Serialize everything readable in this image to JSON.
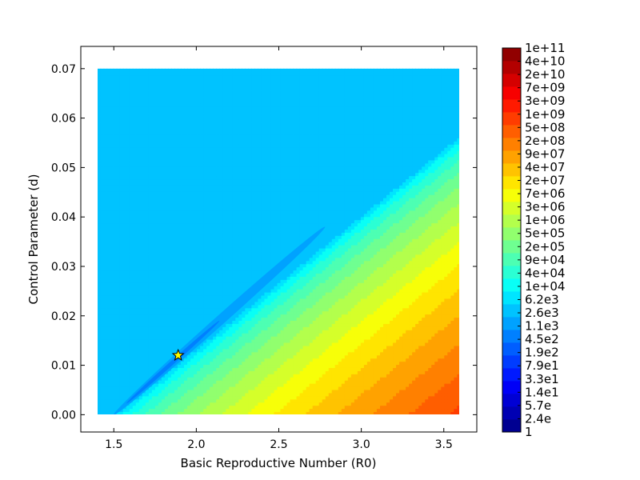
{
  "chart_data": {
    "type": "contour",
    "title": "",
    "xlabel": "Basic Reproductive Number (R0)",
    "ylabel": "Control Parameter (d)",
    "xlim": [
      1.3,
      3.7
    ],
    "ylim": [
      -0.0035,
      0.0745
    ],
    "data_extent": {
      "x": [
        1.4,
        3.6
      ],
      "y": [
        0.0,
        0.07
      ]
    },
    "xticks": [
      "1.5",
      "2.0",
      "2.5",
      "3.0",
      "3.5"
    ],
    "xtick_values": [
      1.5,
      2.0,
      2.5,
      3.0,
      3.5
    ],
    "yticks": [
      "0.00",
      "0.01",
      "0.02",
      "0.03",
      "0.04",
      "0.05",
      "0.06",
      "0.07"
    ],
    "ytick_values": [
      0.0,
      0.01,
      0.02,
      0.03,
      0.04,
      0.05,
      0.06,
      0.07
    ],
    "colormap": "jet",
    "colorbar_levels": [
      "1",
      "2.4e",
      "5.7e",
      "1.4e1",
      "3.3e1",
      "7.9e1",
      "1.9e2",
      "4.5e2",
      "1.1e3",
      "2.6e3",
      "6.2e3",
      "1e+04",
      "4e+04",
      "9e+04",
      "2e+05",
      "5e+05",
      "1e+06",
      "3e+06",
      "7e+06",
      "2e+07",
      "4e+07",
      "9e+07",
      "2e+08",
      "5e+08",
      "1e+09",
      "3e+09",
      "7e+09",
      "2e+10",
      "4e+10",
      "1e+11"
    ],
    "background_level_index": 9,
    "minimum_valley": {
      "from": [
        1.5,
        0.0
      ],
      "to": [
        2.78,
        0.038
      ]
    },
    "marker": {
      "shape": "star",
      "color": "#ffff00",
      "x": 1.89,
      "y": 0.012
    }
  }
}
